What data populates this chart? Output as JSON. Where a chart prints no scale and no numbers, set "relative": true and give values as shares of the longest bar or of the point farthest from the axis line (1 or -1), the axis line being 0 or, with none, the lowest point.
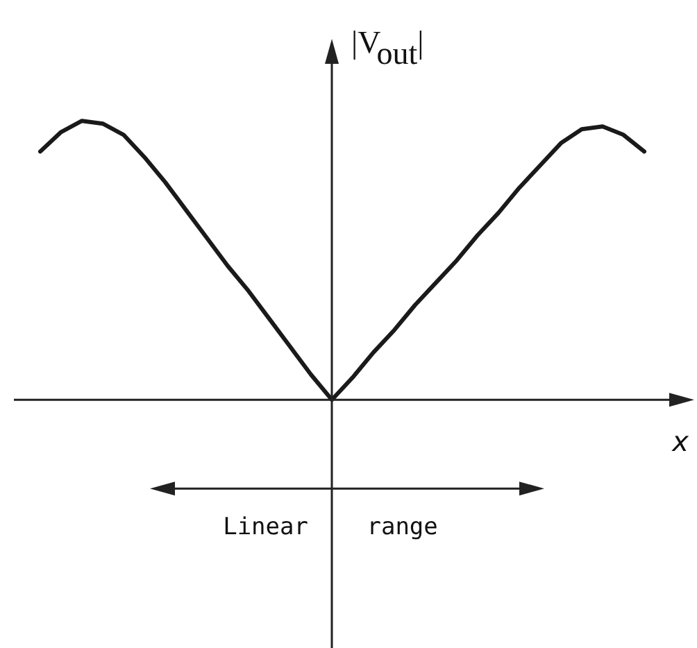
{
  "chart_data": {
    "type": "line",
    "xlabel": "x",
    "ylabel": "|V$_{out}$|",
    "annotations": [
      "Linear range"
    ],
    "relative": true,
    "marker": "none",
    "line_style": "solid",
    "categories": [
      null,
      null,
      null,
      null,
      null,
      null,
      null,
      null,
      null,
      null,
      null,
      null,
      null,
      null,
      null,
      null,
      null,
      null,
      null,
      null,
      null,
      null,
      null,
      null,
      null,
      null,
      null,
      null,
      null,
      null
    ],
    "series": [
      {
        "color": "#1a1a1a",
        "values": [
          0.89,
          0.96,
          1,
          0.99,
          0.95,
          0.87,
          0.78,
          0.68,
          0.58,
          0.48,
          0.39,
          0.29,
          0.19,
          0.09,
          0,
          0.08,
          0.17,
          0.25,
          0.34,
          0.42,
          0.5,
          0.59,
          0.67,
          0.76,
          0.84,
          0.92,
          0.97,
          0.98,
          0.95,
          0.89
        ]
      }
    ]
  }
}
